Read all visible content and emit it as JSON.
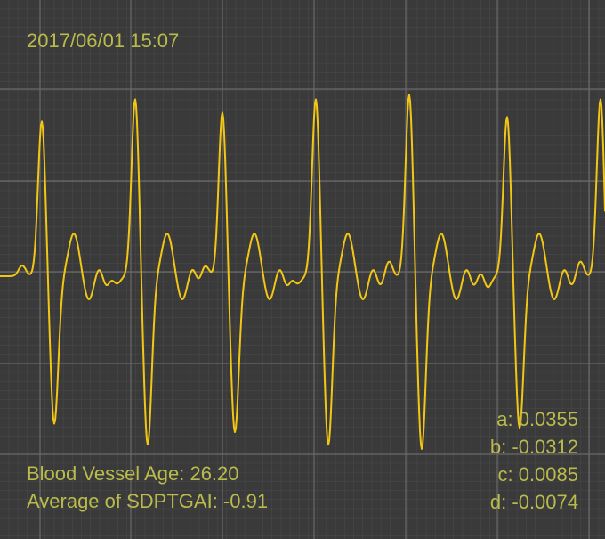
{
  "timestamp": "2017/06/01 15:07",
  "metrics": [
    "Blood Vessel Age: 26.20",
    "Average of SDPTGAI: -0.91"
  ],
  "coefficients": [
    "a: 0.0355",
    "b: -0.0312",
    "c: 0.0085",
    "d: -0.0074"
  ]
}
